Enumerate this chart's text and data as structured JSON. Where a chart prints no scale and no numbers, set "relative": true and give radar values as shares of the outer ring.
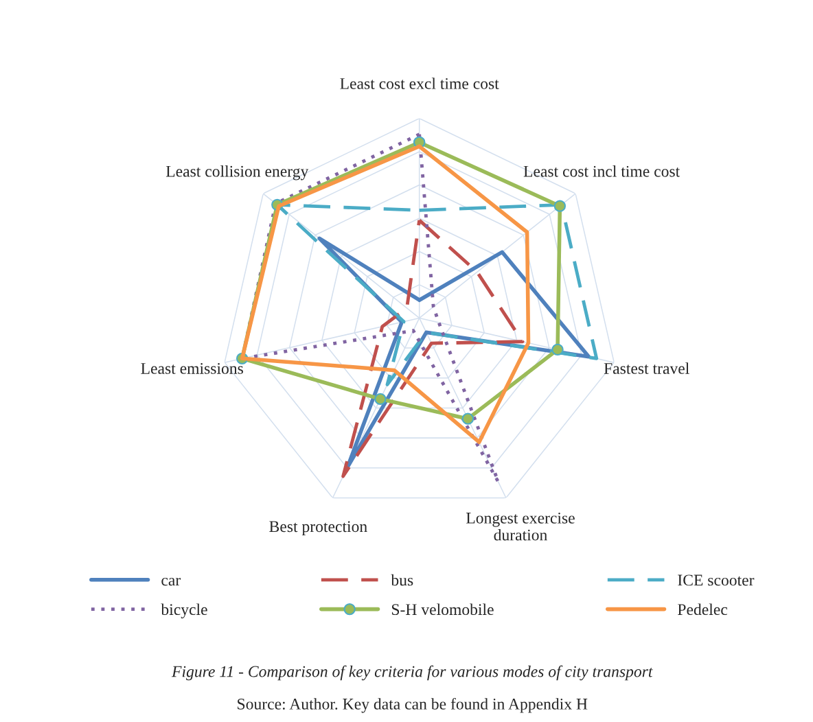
{
  "chart_data": {
    "type": "radar",
    "relative": true,
    "grid": true,
    "legend": "bottom",
    "categories": [
      "Least cost excl time cost",
      "Least cost incl time cost",
      "Fastest travel",
      "Longest exercise\nduration",
      "Best protection",
      "Least emissions",
      "Least collision energy"
    ],
    "series": [
      {
        "name": "car",
        "color": "#4f81bd",
        "line_style": "solid",
        "values": [
          0.09,
          0.53,
          0.87,
          0.08,
          0.83,
          0.09,
          0.64
        ]
      },
      {
        "name": "bus",
        "color": "#c0504d",
        "line_style": "dashed",
        "values": [
          0.49,
          0.37,
          0.53,
          0.14,
          0.88,
          0.19,
          0.08
        ]
      },
      {
        "name": "ICE scooter",
        "color": "#4bacc6",
        "line_style": "dashed",
        "values": [
          0.54,
          0.91,
          0.91,
          0.08,
          0.37,
          0.08,
          0.91
        ]
      },
      {
        "name": "bicycle",
        "color": "#8064a2",
        "line_style": "dotted",
        "values": [
          0.92,
          0.09,
          0.1,
          0.91,
          0.07,
          0.91,
          0.92
        ]
      },
      {
        "name": "S-H velomobile",
        "color": "#9bbb59",
        "line_style": "solid",
        "marker": "circle",
        "values": [
          0.88,
          0.9,
          0.71,
          0.56,
          0.45,
          0.91,
          0.91
        ]
      },
      {
        "name": "Pedelec",
        "color": "#f79646",
        "line_style": "solid",
        "values": [
          0.86,
          0.69,
          0.56,
          0.69,
          0.29,
          0.91,
          0.9
        ]
      }
    ],
    "annotations": [
      "Figure 11 - Comparison of key criteria for various modes of city transport",
      "Source: Author. Key data can be found in Appendix H"
    ]
  }
}
